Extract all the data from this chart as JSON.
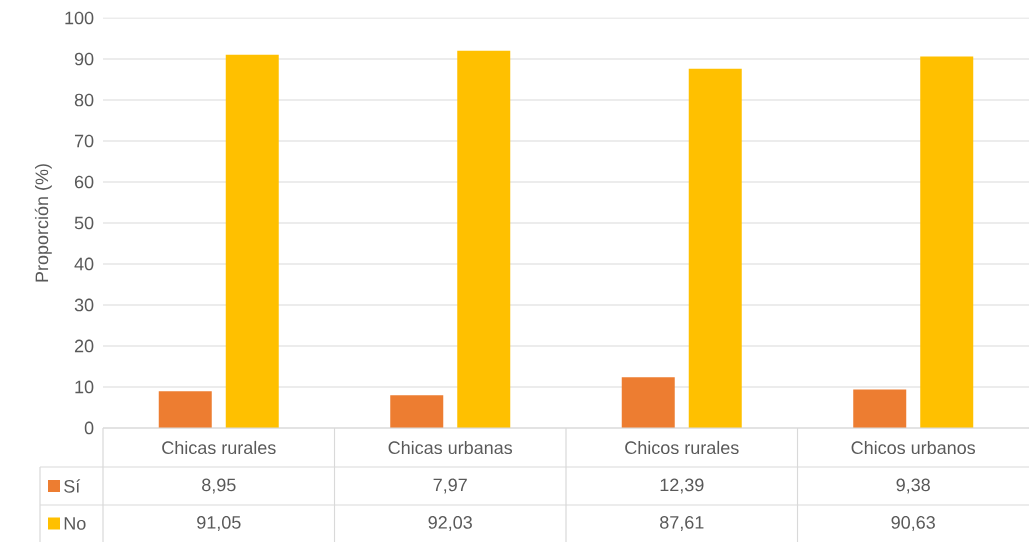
{
  "chart_data": {
    "type": "bar",
    "ylabel": "Proporción (%)",
    "categories": [
      "Chicas rurales",
      "Chicas urbanas",
      "Chicos rurales",
      "Chicos urbanos"
    ],
    "series": [
      {
        "name": "Sí",
        "color": "#ed7d31",
        "values": [
          8.95,
          7.97,
          12.39,
          9.38
        ],
        "value_labels": [
          "8,95",
          "7,97",
          "12,39",
          "9,38"
        ]
      },
      {
        "name": "No",
        "color": "#ffc000",
        "values": [
          91.05,
          92.03,
          87.61,
          90.63
        ],
        "value_labels": [
          "91,05",
          "92,03",
          "87,61",
          "90,63"
        ]
      }
    ],
    "ylim": [
      0,
      100
    ],
    "yticks": [
      0,
      10,
      20,
      30,
      40,
      50,
      60,
      70,
      80,
      90,
      100
    ],
    "grid": "y",
    "legend": "bottom left"
  }
}
